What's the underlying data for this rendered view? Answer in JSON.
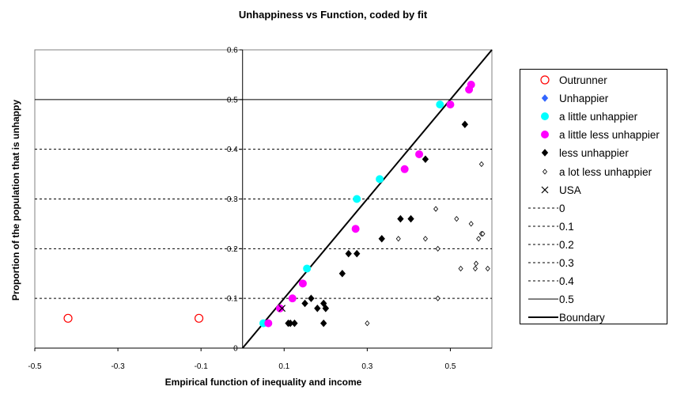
{
  "chart_data": {
    "type": "scatter",
    "title": "Unhappiness vs Function, coded by fit",
    "xlabel": "Empirical function of inequality and income",
    "ylabel": "Proportion of the population that is unhappy",
    "xlim": [
      -0.5,
      0.6
    ],
    "ylim": [
      0,
      0.6
    ],
    "x_ticks": [
      "-0.5",
      "-0.3",
      "-0.1",
      "0.1",
      "0.3",
      "0.5"
    ],
    "y_ticks": [
      "0",
      "0.1",
      "0.2",
      "0.3",
      "0.4",
      "0.5",
      "0.6"
    ],
    "legend_position": "right",
    "series": [
      {
        "name": "Outrunner",
        "marker": "open-circle",
        "color": "#ff0000",
        "x": [
          -0.42,
          -0.105
        ],
        "y": [
          0.06,
          0.06
        ]
      },
      {
        "name": "Unhappier",
        "marker": "diamond",
        "color": "#3366ff",
        "x": [],
        "y": []
      },
      {
        "name": "a little unhappier",
        "marker": "circle",
        "color": "#00ffff",
        "x": [
          0.05,
          0.155,
          0.275,
          0.33,
          0.475
        ],
        "y": [
          0.05,
          0.16,
          0.3,
          0.34,
          0.49
        ]
      },
      {
        "name": "a little less unhappier",
        "marker": "circle",
        "color": "#ff00ff",
        "x": [
          0.062,
          0.09,
          0.12,
          0.145,
          0.272,
          0.39,
          0.425,
          0.5,
          0.545,
          0.55
        ],
        "y": [
          0.05,
          0.08,
          0.1,
          0.13,
          0.24,
          0.36,
          0.39,
          0.49,
          0.52,
          0.53
        ]
      },
      {
        "name": "less unhappier",
        "marker": "diamond",
        "color": "#000000",
        "x": [
          0.11,
          0.115,
          0.125,
          0.15,
          0.165,
          0.18,
          0.195,
          0.195,
          0.2,
          0.2,
          0.24,
          0.255,
          0.275,
          0.335,
          0.38,
          0.405,
          0.44,
          0.535
        ],
        "y": [
          0.05,
          0.05,
          0.05,
          0.09,
          0.1,
          0.08,
          0.09,
          0.05,
          0.08,
          0.08,
          0.15,
          0.19,
          0.19,
          0.22,
          0.26,
          0.26,
          0.38,
          0.45
        ]
      },
      {
        "name": "a lot less unhappier",
        "marker": "open-diamond",
        "color": "#000000",
        "x": [
          0.3,
          0.375,
          0.44,
          0.465,
          0.47,
          0.47,
          0.515,
          0.525,
          0.55,
          0.56,
          0.562,
          0.568,
          0.575,
          0.575,
          0.578,
          0.59
        ],
        "y": [
          0.05,
          0.22,
          0.22,
          0.28,
          0.2,
          0.1,
          0.26,
          0.16,
          0.25,
          0.16,
          0.17,
          0.22,
          0.23,
          0.37,
          0.23,
          0.16
        ]
      },
      {
        "name": "USA",
        "marker": "x",
        "color": "#000000",
        "x": [
          0.095
        ],
        "y": [
          0.08
        ]
      }
    ],
    "reference_lines": [
      {
        "name": "0",
        "y": 0,
        "style": "dashed"
      },
      {
        "name": "0.1",
        "y": 0.1,
        "style": "dashed"
      },
      {
        "name": "0.2",
        "y": 0.2,
        "style": "dashed"
      },
      {
        "name": "0.3",
        "y": 0.3,
        "style": "dashed"
      },
      {
        "name": "0.4",
        "y": 0.4,
        "style": "dashed"
      },
      {
        "name": "0.5",
        "y": 0.5,
        "style": "solid"
      }
    ],
    "boundary": {
      "name": "Boundary",
      "x": [
        0,
        0.6
      ],
      "y": [
        0,
        0.6
      ]
    }
  }
}
